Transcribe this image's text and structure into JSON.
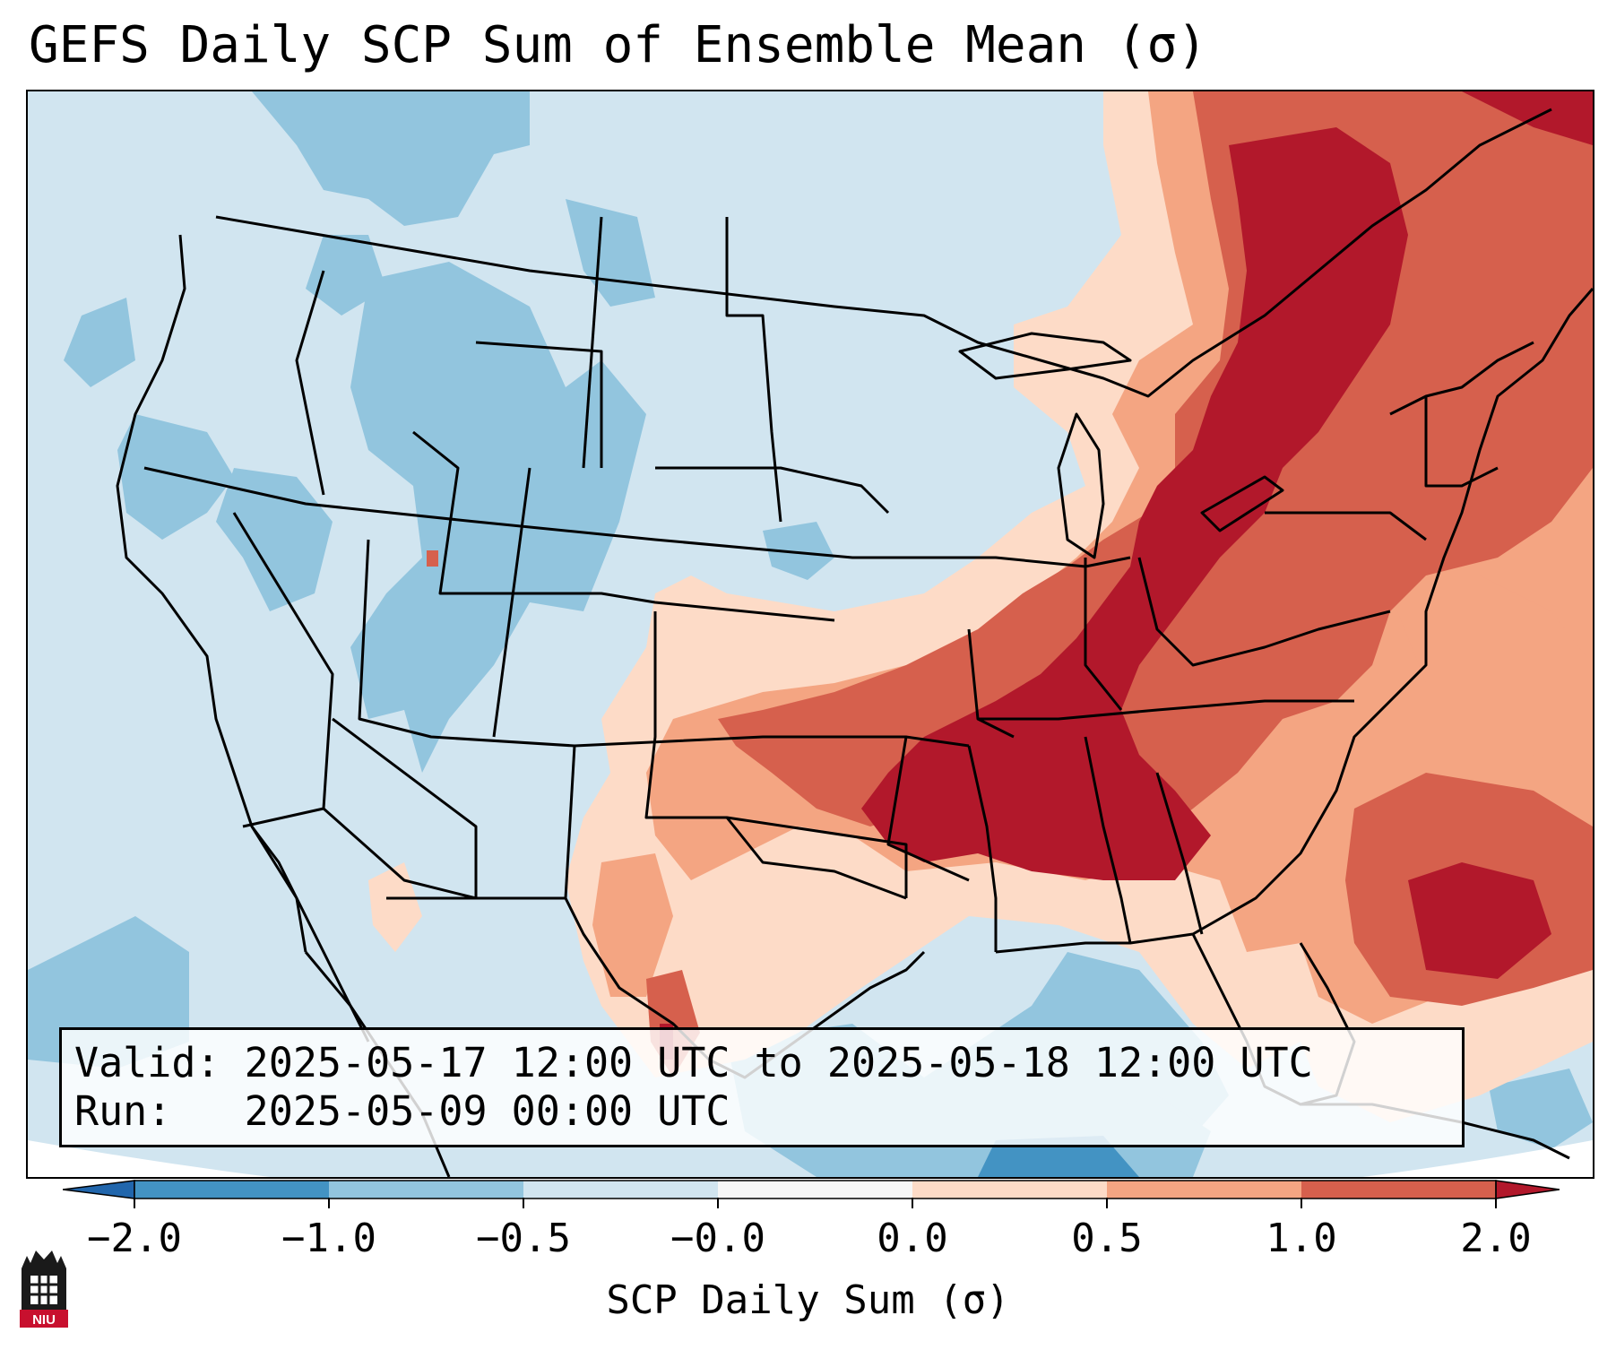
{
  "title": "GEFS Daily SCP Sum of Ensemble Mean (σ)",
  "info": {
    "valid_line": "Valid: 2025-05-17 12:00 UTC to 2025-05-18 12:00 UTC",
    "run_line": "Run:   2025-05-09 00:00 UTC"
  },
  "colorbar": {
    "label": "SCP Daily Sum (σ)",
    "tick_labels": [
      "−2.0",
      "−1.0",
      "−0.5",
      "−0.0",
      "0.0",
      "0.5",
      "1.0",
      "2.0"
    ],
    "colors": {
      "extend_low": "#2166ac",
      "bin_neg2_neg1": "#4393c3",
      "bin_neg1_neg05": "#92c5de",
      "bin_neg05_neg0": "#d1e5f0",
      "bin_neg0_0": "#f7f7f7",
      "bin_0_05": "#fddbc7",
      "bin_05_1": "#f4a582",
      "bin_1_2": "#d6604d",
      "extend_high": "#b2182b"
    }
  },
  "map": {
    "region": "Contiguous United States",
    "highlights": [
      "Highest values (>2.0σ) over Tennessee, Kentucky, Alabama, Mississippi, Georgia, Ohio Valley and New York/Quebec",
      "Elevated values (0.5–2.0σ) over southern Plains, Arkansas, Texas, Carolinas and western Atlantic",
      "Below-normal values (−1.0 to −0.5σ) over the West, Great Basin and Gulf of Mexico"
    ]
  },
  "logo": {
    "text": "NIU"
  }
}
